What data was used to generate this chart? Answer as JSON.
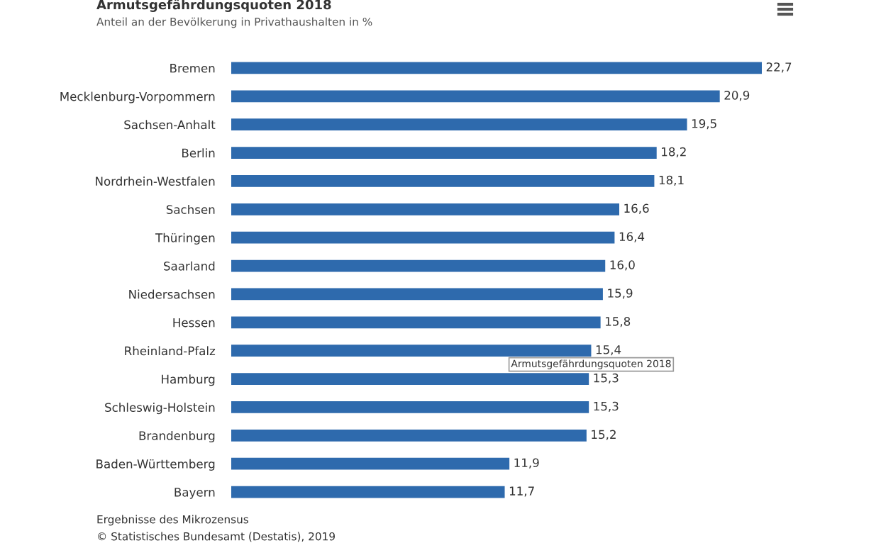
{
  "chart_data": {
    "type": "bar",
    "orientation": "horizontal",
    "title": "Armutsgefährdungsquoten 2018",
    "subtitle": "Anteil an der Bevölkerung in Privathaushalten in %",
    "categories": [
      "Bremen",
      "Mecklenburg-Vorpommern",
      "Sachsen-Anhalt",
      "Berlin",
      "Nordrhein-Westfalen",
      "Sachsen",
      "Thüringen",
      "Saarland",
      "Niedersachsen",
      "Hessen",
      "Rheinland-Pfalz",
      "Hamburg",
      "Schleswig-Holstein",
      "Brandenburg",
      "Baden-Württemberg",
      "Bayern"
    ],
    "values": [
      22.7,
      20.9,
      19.5,
      18.2,
      18.1,
      16.6,
      16.4,
      16.0,
      15.9,
      15.8,
      15.4,
      15.3,
      15.3,
      15.2,
      11.9,
      11.7
    ],
    "value_labels": [
      "22,7",
      "20,9",
      "19,5",
      "18,2",
      "18,1",
      "16,6",
      "16,4",
      "16,0",
      "15,9",
      "15,8",
      "15,4",
      "15,3",
      "15,3",
      "15,2",
      "11,9",
      "11,7"
    ],
    "color": "#2e6aad",
    "annotations": [
      {
        "text": "Armutsgefährdungsquoten 2018",
        "x": 15.4,
        "y": "Rheinland-Pfalz"
      },
      "Ergebnisse des Mikrozensus",
      "© Statistisches Bundesamt (Destatis), 2019"
    ],
    "grid": false,
    "legend": false
  }
}
